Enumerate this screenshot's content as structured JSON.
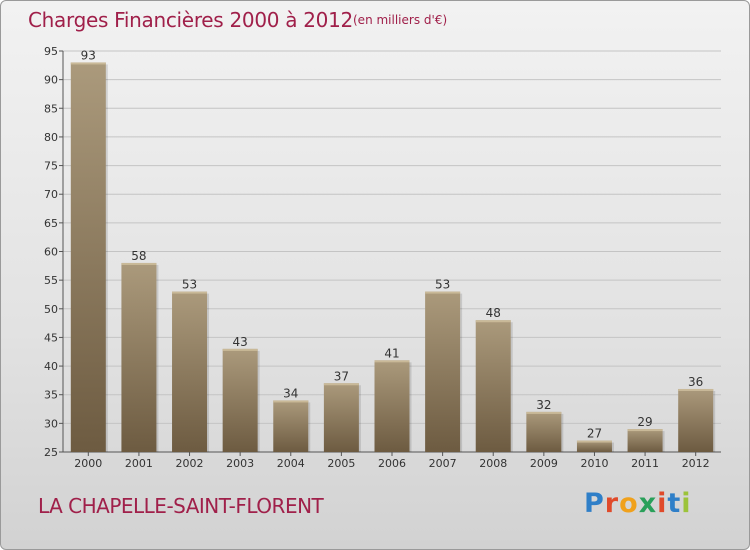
{
  "title": "Charges Financières 2000 à 2012",
  "subtitle": "(en milliers d'€)",
  "footer_label": "LA CHAPELLE-SAINT-FLORENT",
  "logo_text": "Proxiti",
  "colors": {
    "title": "#a0204a",
    "bar_top": "#ab9a7c",
    "bar_bottom": "#6d5b41",
    "logo_letters": [
      "#2f7fc8",
      "#e04a2a",
      "#f0a11c",
      "#2aa05a",
      "#e04a2a",
      "#2f7fc8",
      "#9cc33a"
    ]
  },
  "chart_data": {
    "type": "bar",
    "title": "Charges Financières 2000 à 2012",
    "subtitle": "(en milliers d'€)",
    "categories": [
      "2000",
      "2001",
      "2002",
      "2003",
      "2004",
      "2005",
      "2006",
      "2007",
      "2008",
      "2009",
      "2010",
      "2011",
      "2012"
    ],
    "values": [
      93,
      58,
      53,
      43,
      34,
      37,
      41,
      53,
      48,
      32,
      27,
      29,
      36
    ],
    "ylim": [
      25,
      95
    ],
    "yticks": [
      25,
      30,
      35,
      40,
      45,
      50,
      55,
      60,
      65,
      70,
      75,
      80,
      85,
      90,
      95
    ],
    "grid": true,
    "data_labels": true
  }
}
